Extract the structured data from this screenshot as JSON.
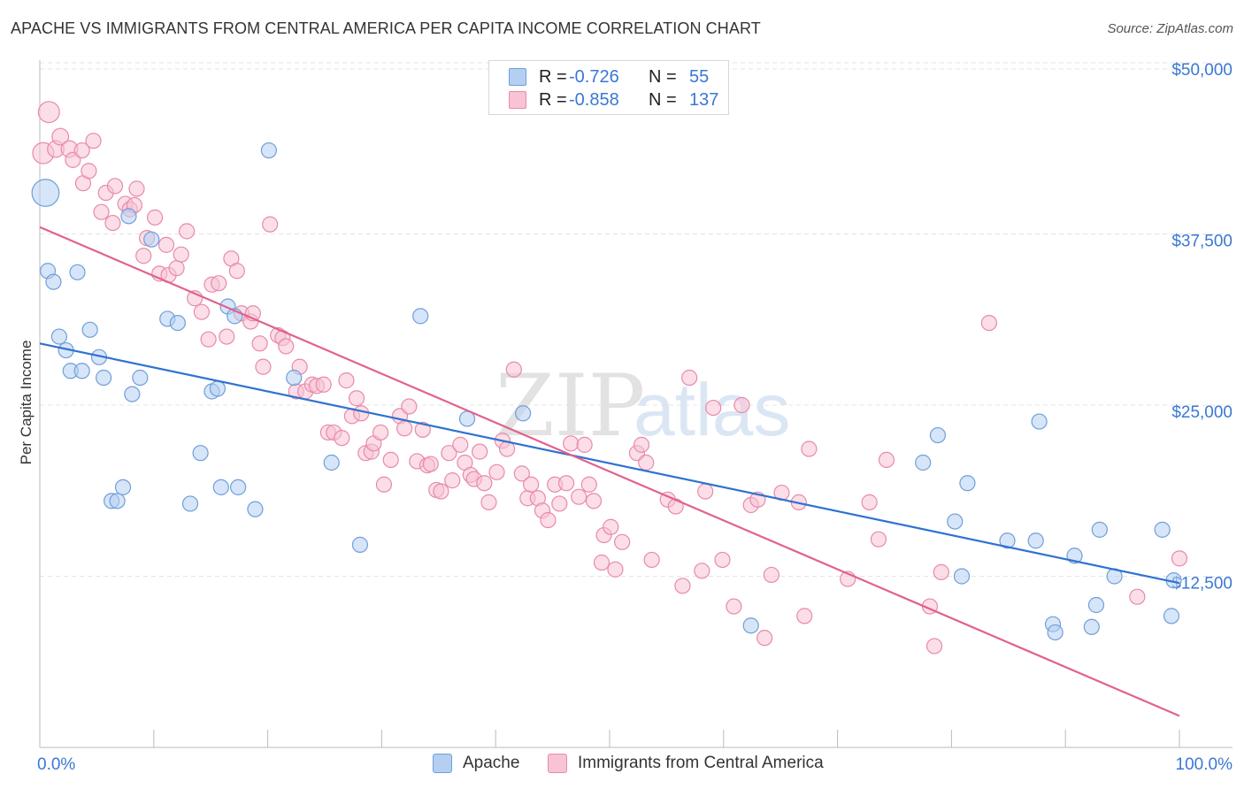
{
  "title": "APACHE VS IMMIGRANTS FROM CENTRAL AMERICA PER CAPITA INCOME CORRELATION CHART",
  "source": "Source: ZipAtlas.com",
  "watermark": {
    "part1": "ZIP",
    "part2": "atlas"
  },
  "legend_top": {
    "rows": [
      {
        "r_label": "R =",
        "r_value": "-0.726",
        "n_label": "N =",
        "n_value": "55"
      },
      {
        "r_label": "R =",
        "r_value": "-0.858",
        "n_label": "N =",
        "n_value": "137"
      }
    ]
  },
  "legend_bottom": {
    "apache": "Apache",
    "immigrants": "Immigrants from Central America"
  },
  "colors": {
    "apache_fill": "#b5cff2",
    "apache_stroke": "#6f9fd8",
    "apache_line": "#2f72d0",
    "immig_fill": "#f8c3d4",
    "immig_stroke": "#e88aaa",
    "immig_line": "#e0628f",
    "axis_text": "#3a78d4",
    "grid": "#e4e4e4"
  },
  "chart_data": {
    "type": "scatter",
    "title": "APACHE VS IMMIGRANTS FROM CENTRAL AMERICA PER CAPITA INCOME CORRELATION CHART",
    "xlabel": "",
    "ylabel": "Per Capita Income",
    "xlim": [
      0,
      100
    ],
    "ylim": [
      0,
      52000
    ],
    "x_tick_labels": [
      "0.0%",
      "100.0%"
    ],
    "y_ticks": [
      12500,
      25000,
      37500,
      50000
    ],
    "y_tick_labels": [
      "$12,500",
      "$25,000",
      "$37,500",
      "$50,000"
    ],
    "grid": true,
    "series": [
      {
        "name": "Apache",
        "r": -0.726,
        "n": 55,
        "trend": [
          [
            0,
            29500
          ],
          [
            100,
            12000
          ]
        ],
        "points": [
          [
            0.5,
            40500,
            1.8
          ],
          [
            0.7,
            34800,
            1
          ],
          [
            1.2,
            34000,
            1
          ],
          [
            1.7,
            30000,
            1
          ],
          [
            2.3,
            29000,
            1
          ],
          [
            2.7,
            27500,
            1
          ],
          [
            3.3,
            34700,
            1
          ],
          [
            3.7,
            27500,
            1
          ],
          [
            4.4,
            30500,
            1
          ],
          [
            5.2,
            28500,
            1
          ],
          [
            5.6,
            27000,
            1
          ],
          [
            6.3,
            18000,
            1
          ],
          [
            6.8,
            18000,
            1
          ],
          [
            7.3,
            19000,
            1
          ],
          [
            7.8,
            38800,
            1
          ],
          [
            8.1,
            25800,
            1
          ],
          [
            8.8,
            27000,
            1
          ],
          [
            9.8,
            37100,
            1
          ],
          [
            11.2,
            31300,
            1
          ],
          [
            12.1,
            31000,
            1
          ],
          [
            13.2,
            17800,
            1
          ],
          [
            14.1,
            21500,
            1
          ],
          [
            15.1,
            26000,
            1
          ],
          [
            15.6,
            26200,
            1
          ],
          [
            15.9,
            19000,
            1
          ],
          [
            16.5,
            32200,
            1
          ],
          [
            17.1,
            31500,
            1
          ],
          [
            17.4,
            19000,
            1
          ],
          [
            18.9,
            17400,
            1
          ],
          [
            20.1,
            43600,
            1
          ],
          [
            22.3,
            27000,
            1
          ],
          [
            25.6,
            20800,
            1
          ],
          [
            28.1,
            14800,
            1
          ],
          [
            33.4,
            31500,
            1
          ],
          [
            37.5,
            24000,
            1
          ],
          [
            42.4,
            24400,
            1
          ],
          [
            62.4,
            8900,
            1
          ],
          [
            77.5,
            20800,
            1
          ],
          [
            78.8,
            22800,
            1
          ],
          [
            80.3,
            16500,
            1
          ],
          [
            80.9,
            12500,
            1
          ],
          [
            81.4,
            19300,
            1
          ],
          [
            84.9,
            15100,
            1
          ],
          [
            87.4,
            15100,
            1
          ],
          [
            87.7,
            23800,
            1
          ],
          [
            88.9,
            9000,
            1
          ],
          [
            89.1,
            8400,
            1
          ],
          [
            90.8,
            14000,
            1
          ],
          [
            92.3,
            8800,
            1
          ],
          [
            92.7,
            10400,
            1
          ],
          [
            93.0,
            15900,
            1
          ],
          [
            94.3,
            12500,
            1
          ],
          [
            98.5,
            15900,
            1
          ],
          [
            99.3,
            9600,
            1
          ],
          [
            99.5,
            12200,
            1
          ]
        ]
      },
      {
        "name": "Immigrants from Central America",
        "r": -0.858,
        "n": 137,
        "trend": [
          [
            0,
            38000
          ],
          [
            100,
            2300
          ]
        ],
        "points": [
          [
            0.3,
            43400,
            1.4
          ],
          [
            0.8,
            46400,
            1.4
          ],
          [
            1.4,
            43700,
            1.1
          ],
          [
            1.8,
            44600,
            1.1
          ],
          [
            2.6,
            43700,
            1.1
          ],
          [
            2.9,
            42900,
            1
          ],
          [
            3.7,
            43600,
            1
          ],
          [
            3.8,
            41200,
            1
          ],
          [
            4.3,
            42100,
            1
          ],
          [
            4.7,
            44300,
            1
          ],
          [
            5.4,
            39100,
            1
          ],
          [
            5.8,
            40500,
            1
          ],
          [
            6.4,
            38300,
            1
          ],
          [
            6.6,
            41000,
            1
          ],
          [
            7.5,
            39700,
            1
          ],
          [
            7.9,
            39300,
            1
          ],
          [
            8.3,
            39600,
            1
          ],
          [
            8.5,
            40800,
            1
          ],
          [
            9.1,
            35900,
            1
          ],
          [
            9.4,
            37200,
            1
          ],
          [
            10.1,
            38700,
            1
          ],
          [
            10.5,
            34600,
            1
          ],
          [
            11.1,
            36700,
            1
          ],
          [
            11.3,
            34500,
            1
          ],
          [
            12.0,
            35000,
            1
          ],
          [
            12.4,
            36000,
            1
          ],
          [
            12.9,
            37700,
            1
          ],
          [
            13.6,
            32800,
            1
          ],
          [
            14.2,
            31800,
            1
          ],
          [
            14.8,
            29800,
            1
          ],
          [
            15.1,
            33800,
            1
          ],
          [
            15.7,
            33900,
            1
          ],
          [
            16.4,
            30000,
            1
          ],
          [
            16.8,
            35700,
            1
          ],
          [
            17.3,
            34800,
            1
          ],
          [
            17.7,
            31700,
            1
          ],
          [
            18.5,
            31100,
            1
          ],
          [
            18.7,
            31700,
            1
          ],
          [
            19.3,
            29500,
            1
          ],
          [
            19.6,
            27800,
            1
          ],
          [
            20.2,
            38200,
            1
          ],
          [
            20.9,
            30100,
            1
          ],
          [
            21.3,
            29900,
            1
          ],
          [
            21.6,
            29300,
            1
          ],
          [
            22.5,
            26000,
            1
          ],
          [
            22.8,
            27800,
            1
          ],
          [
            23.3,
            26000,
            1
          ],
          [
            23.9,
            26500,
            1
          ],
          [
            24.3,
            26400,
            1
          ],
          [
            24.9,
            26500,
            1
          ],
          [
            25.3,
            23000,
            1
          ],
          [
            25.8,
            23000,
            1
          ],
          [
            26.5,
            22600,
            1
          ],
          [
            26.9,
            26800,
            1
          ],
          [
            27.4,
            24200,
            1
          ],
          [
            27.8,
            25500,
            1
          ],
          [
            28.2,
            24400,
            1
          ],
          [
            28.6,
            21500,
            1
          ],
          [
            29.1,
            21600,
            1
          ],
          [
            29.3,
            22200,
            1
          ],
          [
            29.9,
            23000,
            1
          ],
          [
            30.2,
            19200,
            1
          ],
          [
            30.8,
            21000,
            1
          ],
          [
            31.6,
            24200,
            1
          ],
          [
            32.0,
            23300,
            1
          ],
          [
            32.4,
            24900,
            1
          ],
          [
            33.1,
            20900,
            1
          ],
          [
            33.6,
            23200,
            1
          ],
          [
            34.0,
            20600,
            1
          ],
          [
            34.3,
            20700,
            1
          ],
          [
            34.8,
            18800,
            1
          ],
          [
            35.2,
            18700,
            1
          ],
          [
            35.9,
            21500,
            1
          ],
          [
            36.2,
            19500,
            1
          ],
          [
            36.9,
            22100,
            1
          ],
          [
            37.3,
            20800,
            1
          ],
          [
            37.8,
            19900,
            1
          ],
          [
            38.1,
            19600,
            1
          ],
          [
            38.6,
            21600,
            1
          ],
          [
            39.0,
            19300,
            1
          ],
          [
            39.4,
            17900,
            1
          ],
          [
            40.1,
            20100,
            1
          ],
          [
            40.6,
            22400,
            1
          ],
          [
            41.0,
            21800,
            1
          ],
          [
            41.6,
            27600,
            1
          ],
          [
            42.3,
            20000,
            1
          ],
          [
            42.8,
            18200,
            1
          ],
          [
            43.1,
            19200,
            1
          ],
          [
            43.7,
            18200,
            1
          ],
          [
            44.1,
            17300,
            1
          ],
          [
            44.6,
            16600,
            1
          ],
          [
            45.2,
            19200,
            1
          ],
          [
            45.6,
            17800,
            1
          ],
          [
            46.2,
            19300,
            1
          ],
          [
            46.6,
            22200,
            1
          ],
          [
            47.3,
            18300,
            1
          ],
          [
            47.8,
            22100,
            1
          ],
          [
            48.2,
            19200,
            1
          ],
          [
            48.6,
            18000,
            1
          ],
          [
            49.3,
            13500,
            1
          ],
          [
            49.5,
            15500,
            1
          ],
          [
            50.1,
            16100,
            1
          ],
          [
            50.5,
            13000,
            1
          ],
          [
            51.1,
            15000,
            1
          ],
          [
            52.4,
            21500,
            1
          ],
          [
            52.8,
            22100,
            1
          ],
          [
            53.2,
            20800,
            1
          ],
          [
            53.7,
            13700,
            1
          ],
          [
            55.1,
            18100,
            1
          ],
          [
            55.8,
            17600,
            1
          ],
          [
            56.4,
            11800,
            1
          ],
          [
            57.0,
            27000,
            1
          ],
          [
            58.1,
            12900,
            1
          ],
          [
            58.4,
            18700,
            1
          ],
          [
            59.1,
            24800,
            1
          ],
          [
            59.9,
            13700,
            1
          ],
          [
            60.9,
            10300,
            1
          ],
          [
            61.6,
            25000,
            1
          ],
          [
            62.4,
            17700,
            1
          ],
          [
            63.0,
            18100,
            1
          ],
          [
            63.6,
            8000,
            1
          ],
          [
            64.2,
            12600,
            1
          ],
          [
            65.1,
            18600,
            1
          ],
          [
            66.6,
            17900,
            1
          ],
          [
            67.1,
            9600,
            1
          ],
          [
            67.5,
            21800,
            1
          ],
          [
            70.9,
            12300,
            1
          ],
          [
            72.8,
            17900,
            1
          ],
          [
            73.6,
            15200,
            1
          ],
          [
            74.3,
            21000,
            1
          ],
          [
            78.1,
            10300,
            1
          ],
          [
            78.5,
            7400,
            1
          ],
          [
            79.1,
            12800,
            1
          ],
          [
            83.3,
            31000,
            1
          ],
          [
            96.3,
            11000,
            1
          ],
          [
            100.0,
            13800,
            1
          ]
        ]
      }
    ]
  }
}
